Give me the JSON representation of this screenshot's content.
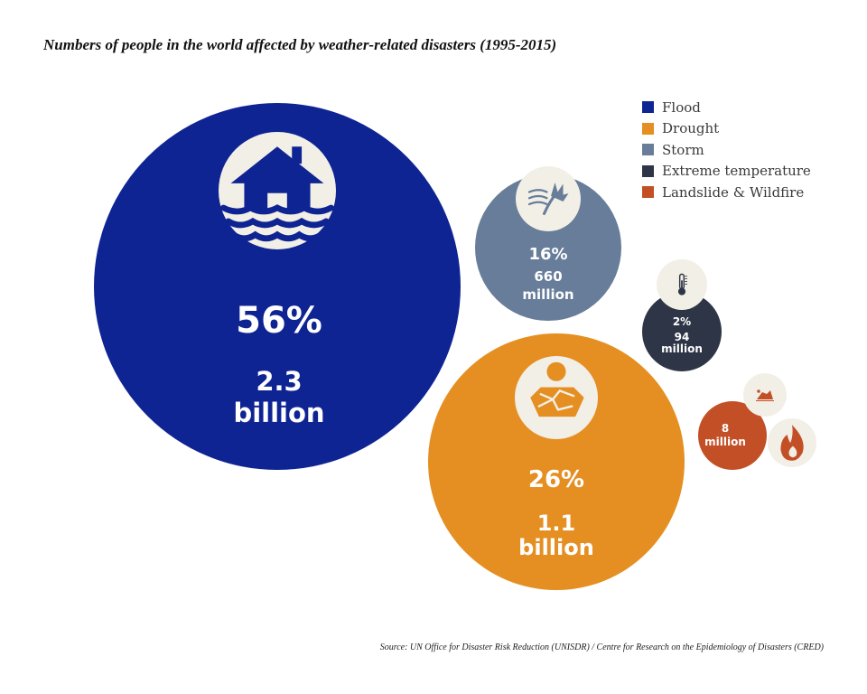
{
  "title": "Numbers of people in the world affected by weather-related disasters (1995-2015)",
  "source": "Source: UN Office for Disaster Risk Reduction (UNISDR) / Centre for Research on the Epidemiology of Disasters (CRED)",
  "chart_data": {
    "type": "bubble",
    "title": "Numbers of people in the world affected by weather-related disasters (1995-2015)",
    "legend_position": "top-right",
    "series": [
      {
        "name": "Flood",
        "percent": 56,
        "percent_label": "56%",
        "people_label": "2.3 billion",
        "people_line1": "2.3",
        "people_line2": "billion",
        "people": 2300000000,
        "color": "#0f2493",
        "icon": "flooded-house-icon"
      },
      {
        "name": "Drought",
        "percent": 26,
        "percent_label": "26%",
        "people_label": "1.1 billion",
        "people_line1": "1.1",
        "people_line2": "billion",
        "people": 1100000000,
        "color": "#e58f22",
        "icon": "dry-cracked-earth-icon"
      },
      {
        "name": "Storm",
        "percent": 16,
        "percent_label": "16%",
        "people_label": "660 million",
        "people_line1": "660",
        "people_line2": "million",
        "people": 660000000,
        "color": "#677d99",
        "icon": "storm-wind-tree-icon"
      },
      {
        "name": "Extreme temperature",
        "percent": 2,
        "percent_label": "2%",
        "people_label": "94 million",
        "people_line1": "94",
        "people_line2": "million",
        "people": 94000000,
        "color": "#2e3546",
        "icon": "thermometer-icon"
      },
      {
        "name": "Landslide & Wildfire",
        "percent": null,
        "percent_label": "",
        "people_label": "8 million",
        "people_line1": "8",
        "people_line2": "million",
        "people": 8000000,
        "color": "#c34f27",
        "icon": "landslide-icon",
        "icon2": "wildfire-icon"
      }
    ]
  }
}
